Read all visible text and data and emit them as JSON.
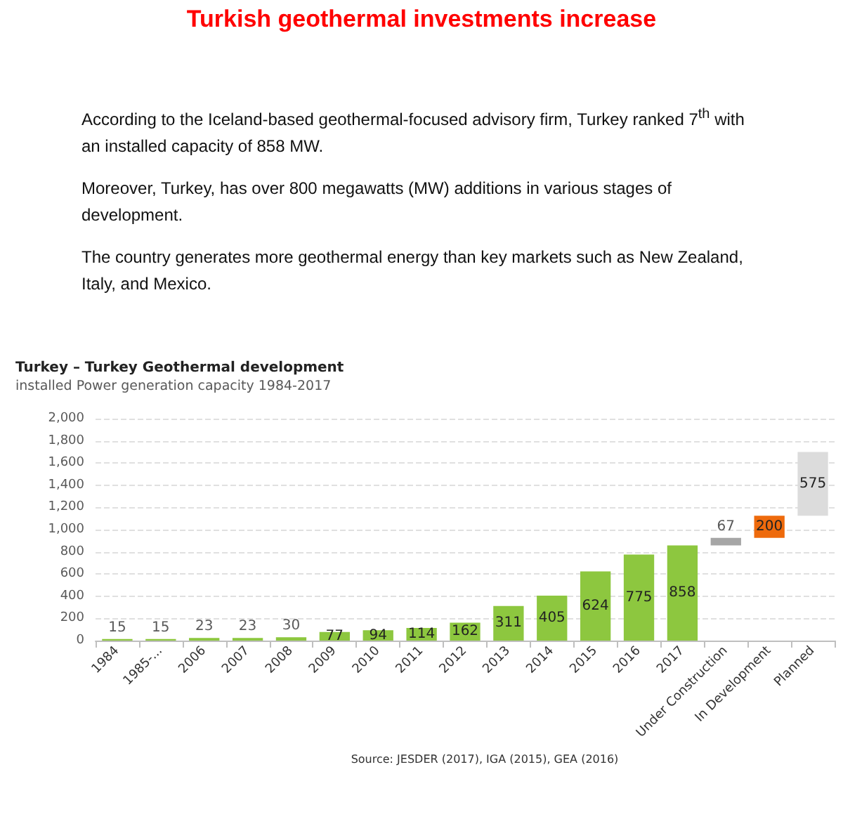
{
  "chart_data": {
    "type": "bar",
    "title": "Turkish geothermal investments increase",
    "subtitle": "Turkey – Turkey Geothermal development",
    "ylabel": "installed Power generation capacity 1984-2017",
    "annotations": [
      "According to the Iceland-based geothermal-focused advisory firm, Turkey ranked 7$^{th}$ with an installed capacity of 858 MW.",
      "Moreover, Turkey, has over 800 megawatts (MW) additions in various stages of development.",
      "The country generates more geothermal energy than key markets such as New Zealand, Italy, and Mexico.",
      "Source: JESDER (2017), IGA (2015), GEA (2016)"
    ],
    "categories": [
      "1984",
      "1985-...",
      "2006",
      "2007",
      "2008",
      "2009",
      "2010",
      "2011",
      "2012",
      "2013",
      "2014",
      "2015",
      "2016",
      "2017",
      "Under Construction",
      "In Development",
      "Planned"
    ],
    "values": [
      15,
      15,
      23,
      23,
      30,
      77,
      94,
      114,
      162,
      311,
      405,
      624,
      775,
      858,
      67,
      200,
      575
    ],
    "base": [
      0,
      0,
      0,
      0,
      0,
      0,
      0,
      0,
      0,
      0,
      0,
      0,
      0,
      0,
      858,
      925,
      1125
    ],
    "colors": [
      "#8dc73f",
      "#8dc73f",
      "#8dc73f",
      "#8dc73f",
      "#8dc73f",
      "#8dc73f",
      "#8dc73f",
      "#8dc73f",
      "#8dc73f",
      "#8dc73f",
      "#8dc73f",
      "#8dc73f",
      "#8dc73f",
      "#8dc73f",
      "#a6a6a6",
      "#ee6a0c",
      "#dcdcdc"
    ],
    "ylim": [
      0,
      2000
    ],
    "yticks": [
      0,
      200,
      400,
      600,
      800,
      {
        "value": 1000,
        "label": "1,000"
      },
      {
        "value": 1200,
        "label": "1,200"
      },
      {
        "value": 1400,
        "label": "1,400"
      },
      {
        "value": 1600,
        "label": "1,600"
      },
      {
        "value": 1800,
        "label": "1,800"
      },
      {
        "value": 2000,
        "label": "2,000"
      }
    ],
    "grid": "y",
    "data_labels": true
  }
}
